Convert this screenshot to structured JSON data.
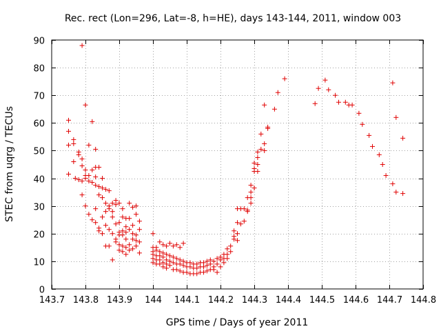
{
  "chart_data": {
    "type": "scatter",
    "title": "Rec. rect (Lon=296, Lat=-8, h=HE), days 143-144, 2011, window 003",
    "xlabel": "GPS time / Days of year 2011",
    "ylabel": "STEC from uqrg / TECUs",
    "xlim": [
      143.7,
      144.8
    ],
    "ylim": [
      0,
      90
    ],
    "xticks": [
      143.7,
      143.8,
      143.9,
      144,
      144.1,
      144.2,
      144.3,
      144.4,
      144.5,
      144.6,
      144.7,
      144.8
    ],
    "xtick_labels": [
      "143.7",
      "143.8",
      "143.9",
      "144",
      "144.1",
      "144.2",
      "144.3",
      "144.4",
      "144.5",
      "144.6",
      "144.7",
      "144.8"
    ],
    "yticks": [
      0,
      10,
      20,
      30,
      40,
      50,
      60,
      70,
      80,
      90
    ],
    "ytick_labels": [
      "0",
      "10",
      "20",
      "30",
      "40",
      "50",
      "60",
      "70",
      "80",
      "90"
    ],
    "grid": true,
    "marker": "+",
    "color": "#e00000",
    "points": [
      [
        143.75,
        61
      ],
      [
        143.75,
        57
      ],
      [
        143.75,
        52
      ],
      [
        143.75,
        41.5
      ],
      [
        143.765,
        54
      ],
      [
        143.765,
        52.5
      ],
      [
        143.765,
        46
      ],
      [
        143.77,
        40
      ],
      [
        143.78,
        49.5
      ],
      [
        143.78,
        48.5
      ],
      [
        143.78,
        39.5
      ],
      [
        143.79,
        88
      ],
      [
        143.79,
        47
      ],
      [
        143.79,
        44.5
      ],
      [
        143.79,
        39
      ],
      [
        143.79,
        34
      ],
      [
        143.8,
        66.5
      ],
      [
        143.8,
        43
      ],
      [
        143.8,
        41
      ],
      [
        143.8,
        40
      ],
      [
        143.8,
        30
      ],
      [
        143.81,
        52
      ],
      [
        143.81,
        41
      ],
      [
        143.81,
        39
      ],
      [
        143.81,
        27
      ],
      [
        143.82,
        60.5
      ],
      [
        143.82,
        43
      ],
      [
        143.82,
        38.5
      ],
      [
        143.82,
        25
      ],
      [
        143.83,
        50.5
      ],
      [
        143.83,
        44
      ],
      [
        143.83,
        40.5
      ],
      [
        143.83,
        37.5
      ],
      [
        143.83,
        29
      ],
      [
        143.83,
        24
      ],
      [
        143.84,
        44
      ],
      [
        143.84,
        37
      ],
      [
        143.84,
        34
      ],
      [
        143.84,
        22
      ],
      [
        143.84,
        21
      ],
      [
        143.85,
        40
      ],
      [
        143.85,
        36.5
      ],
      [
        143.85,
        33
      ],
      [
        143.85,
        26
      ],
      [
        143.85,
        20
      ],
      [
        143.86,
        36
      ],
      [
        143.86,
        31
      ],
      [
        143.86,
        28
      ],
      [
        143.86,
        23
      ],
      [
        143.86,
        15.5
      ],
      [
        143.87,
        35.5
      ],
      [
        143.87,
        30
      ],
      [
        143.87,
        29
      ],
      [
        143.87,
        21.5
      ],
      [
        143.87,
        15.5
      ],
      [
        143.88,
        31
      ],
      [
        143.88,
        28
      ],
      [
        143.88,
        26
      ],
      [
        143.88,
        20
      ],
      [
        143.88,
        10.5
      ],
      [
        143.89,
        32
      ],
      [
        143.89,
        30.5
      ],
      [
        143.89,
        23.5
      ],
      [
        143.89,
        18
      ],
      [
        143.89,
        17
      ],
      [
        143.9,
        31
      ],
      [
        143.9,
        24
      ],
      [
        143.9,
        20.5
      ],
      [
        143.9,
        19.5
      ],
      [
        143.9,
        16
      ],
      [
        143.9,
        14
      ],
      [
        143.91,
        29
      ],
      [
        143.91,
        26
      ],
      [
        143.91,
        21
      ],
      [
        143.91,
        19.5
      ],
      [
        143.91,
        15.5
      ],
      [
        143.91,
        13.5
      ],
      [
        143.92,
        25.5
      ],
      [
        143.92,
        22.5
      ],
      [
        143.92,
        20.5
      ],
      [
        143.92,
        18
      ],
      [
        143.92,
        15
      ],
      [
        143.92,
        12.5
      ],
      [
        143.93,
        31
      ],
      [
        143.93,
        25.5
      ],
      [
        143.93,
        21.5
      ],
      [
        143.93,
        16
      ],
      [
        143.93,
        14
      ],
      [
        143.94,
        29.5
      ],
      [
        143.94,
        23
      ],
      [
        143.94,
        20
      ],
      [
        143.94,
        18
      ],
      [
        143.94,
        14.5
      ],
      [
        143.95,
        30
      ],
      [
        143.95,
        27
      ],
      [
        143.95,
        19.5
      ],
      [
        143.95,
        17.5
      ],
      [
        143.95,
        15.5
      ],
      [
        143.96,
        24.5
      ],
      [
        143.96,
        21.5
      ],
      [
        143.96,
        17
      ],
      [
        143.96,
        13
      ],
      [
        144.0,
        20
      ],
      [
        144.0,
        15
      ],
      [
        144.0,
        13.5
      ],
      [
        144.0,
        12.5
      ],
      [
        144.0,
        11
      ],
      [
        144.0,
        9.5
      ],
      [
        144.01,
        15
      ],
      [
        144.01,
        14
      ],
      [
        144.01,
        12
      ],
      [
        144.01,
        10.5
      ],
      [
        144.01,
        9
      ],
      [
        144.02,
        17
      ],
      [
        144.02,
        13.5
      ],
      [
        144.02,
        12
      ],
      [
        144.02,
        10.5
      ],
      [
        144.02,
        9
      ],
      [
        144.03,
        16
      ],
      [
        144.03,
        13
      ],
      [
        144.03,
        11.5
      ],
      [
        144.03,
        9.5
      ],
      [
        144.03,
        8
      ],
      [
        144.04,
        15.5
      ],
      [
        144.04,
        12.5
      ],
      [
        144.04,
        10.5
      ],
      [
        144.04,
        9
      ],
      [
        144.04,
        7.5
      ],
      [
        144.05,
        16.5
      ],
      [
        144.05,
        12
      ],
      [
        144.05,
        10
      ],
      [
        144.05,
        8.5
      ],
      [
        144.06,
        15.5
      ],
      [
        144.06,
        11.5
      ],
      [
        144.06,
        9.5
      ],
      [
        144.06,
        7
      ],
      [
        144.07,
        16
      ],
      [
        144.07,
        11
      ],
      [
        144.07,
        9
      ],
      [
        144.07,
        7
      ],
      [
        144.08,
        15
      ],
      [
        144.08,
        10.5
      ],
      [
        144.08,
        9
      ],
      [
        144.08,
        6.5
      ],
      [
        144.09,
        16.5
      ],
      [
        144.09,
        10
      ],
      [
        144.09,
        8.5
      ],
      [
        144.09,
        6
      ],
      [
        144.1,
        9.5
      ],
      [
        144.1,
        8
      ],
      [
        144.1,
        6
      ],
      [
        144.11,
        9.5
      ],
      [
        144.11,
        8
      ],
      [
        144.11,
        5.5
      ],
      [
        144.12,
        9
      ],
      [
        144.12,
        7.5
      ],
      [
        144.12,
        5.5
      ],
      [
        144.13,
        9
      ],
      [
        144.13,
        7.5
      ],
      [
        144.13,
        5.5
      ],
      [
        144.14,
        9.5
      ],
      [
        144.14,
        8
      ],
      [
        144.14,
        6
      ],
      [
        144.15,
        9.5
      ],
      [
        144.15,
        8
      ],
      [
        144.15,
        6
      ],
      [
        144.16,
        10
      ],
      [
        144.16,
        8.5
      ],
      [
        144.16,
        6.5
      ],
      [
        144.17,
        10.5
      ],
      [
        144.17,
        9
      ],
      [
        144.17,
        7
      ],
      [
        144.18,
        10
      ],
      [
        144.18,
        8
      ],
      [
        144.18,
        7
      ],
      [
        144.19,
        11
      ],
      [
        144.19,
        9
      ],
      [
        144.19,
        6
      ],
      [
        144.2,
        11.5
      ],
      [
        144.2,
        10.5
      ],
      [
        144.2,
        8
      ],
      [
        144.21,
        12.5
      ],
      [
        144.21,
        11
      ],
      [
        144.21,
        9.5
      ],
      [
        144.22,
        14.5
      ],
      [
        144.22,
        12.5
      ],
      [
        144.22,
        11
      ],
      [
        144.23,
        15.5
      ],
      [
        144.23,
        13.5
      ],
      [
        144.24,
        21
      ],
      [
        144.24,
        19
      ],
      [
        144.24,
        18
      ],
      [
        144.25,
        29
      ],
      [
        144.25,
        24
      ],
      [
        144.25,
        20
      ],
      [
        144.25,
        17.5
      ],
      [
        144.26,
        29
      ],
      [
        144.26,
        23.5
      ],
      [
        144.27,
        29
      ],
      [
        144.27,
        24.5
      ],
      [
        144.28,
        33
      ],
      [
        144.28,
        28.5
      ],
      [
        144.28,
        28
      ],
      [
        144.29,
        37.5
      ],
      [
        144.29,
        35
      ],
      [
        144.29,
        33
      ],
      [
        144.29,
        31
      ],
      [
        144.3,
        45.5
      ],
      [
        144.3,
        43.5
      ],
      [
        144.3,
        42.5
      ],
      [
        144.3,
        36.5
      ],
      [
        144.31,
        49.5
      ],
      [
        144.31,
        47.5
      ],
      [
        144.31,
        45
      ],
      [
        144.31,
        42.5
      ],
      [
        144.32,
        56
      ],
      [
        144.32,
        50.5
      ],
      [
        144.33,
        66.5
      ],
      [
        144.33,
        52.5
      ],
      [
        144.33,
        50
      ],
      [
        144.34,
        58.5
      ],
      [
        144.34,
        58
      ],
      [
        144.36,
        65
      ],
      [
        144.37,
        71
      ],
      [
        144.39,
        76
      ],
      [
        144.48,
        67
      ],
      [
        144.49,
        72.5
      ],
      [
        144.51,
        75.5
      ],
      [
        144.52,
        72
      ],
      [
        144.54,
        70
      ],
      [
        144.55,
        67.5
      ],
      [
        144.57,
        67.5
      ],
      [
        144.58,
        66.5
      ],
      [
        144.59,
        66.5
      ],
      [
        144.61,
        63.5
      ],
      [
        144.62,
        59.5
      ],
      [
        144.64,
        55.5
      ],
      [
        144.65,
        51.5
      ],
      [
        144.67,
        48.5
      ],
      [
        144.68,
        45
      ],
      [
        144.69,
        41
      ],
      [
        144.71,
        74.5
      ],
      [
        144.71,
        38
      ],
      [
        144.72,
        62
      ],
      [
        144.72,
        35
      ],
      [
        144.74,
        54.5
      ],
      [
        144.74,
        34.5
      ]
    ]
  }
}
